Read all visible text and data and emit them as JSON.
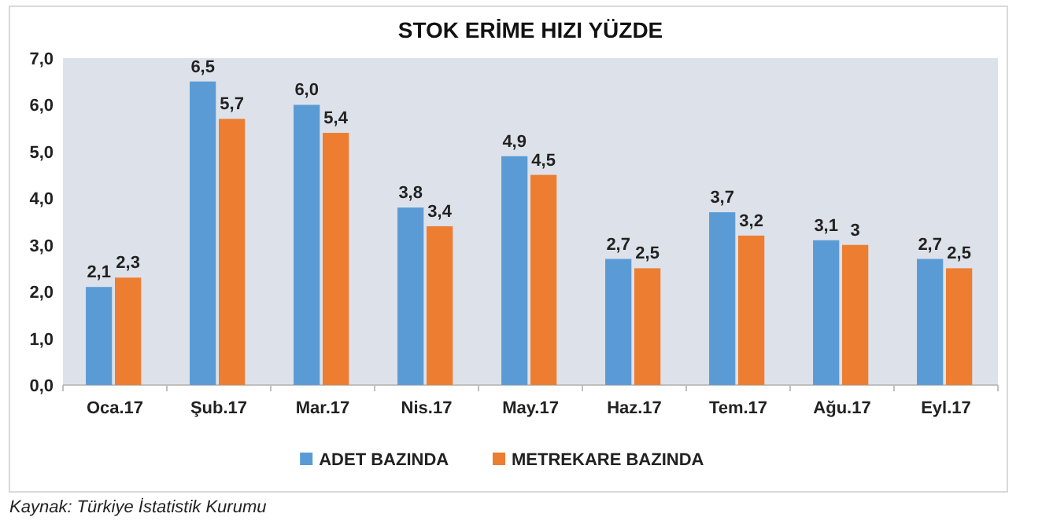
{
  "chart_data": {
    "type": "bar",
    "title": "STOK ERİME HIZI YÜZDE",
    "categories": [
      "Oca.17",
      "Şub.17",
      "Mar.17",
      "Nis.17",
      "May.17",
      "Haz.17",
      "Tem.17",
      "Ağu.17",
      "Eyl.17"
    ],
    "series": [
      {
        "name": "ADET BAZINDA",
        "color": "#5b9bd5",
        "values": [
          2.1,
          6.5,
          6.0,
          3.8,
          4.9,
          2.7,
          3.7,
          3.1,
          2.7
        ],
        "value_labels": [
          "2,1",
          "6,5",
          "6,0",
          "3,8",
          "4,9",
          "2,7",
          "3,7",
          "3,1",
          "2,7"
        ]
      },
      {
        "name": "METREKARE BAZINDA",
        "color": "#ed7d31",
        "values": [
          2.3,
          5.7,
          5.4,
          3.4,
          4.5,
          2.5,
          3.2,
          3.0,
          2.5
        ],
        "value_labels": [
          "2,3",
          "5,7",
          "5,4",
          "3,4",
          "4,5",
          "2,5",
          "3,2",
          "3",
          "2,5"
        ]
      }
    ],
    "ylim": [
      0,
      7
    ],
    "yticks": [
      {
        "value": 0,
        "label": "0,0"
      },
      {
        "value": 1,
        "label": "1,0"
      },
      {
        "value": 2,
        "label": "2,0"
      },
      {
        "value": 3,
        "label": "3,0"
      },
      {
        "value": 4,
        "label": "4,0"
      },
      {
        "value": 5,
        "label": "5,0"
      },
      {
        "value": 6,
        "label": "6,0"
      },
      {
        "value": 7,
        "label": "7,0"
      }
    ],
    "grid": false,
    "legend": "bottom",
    "annotations": [
      "Kaynak: Türkiye İstatistik Kurumu"
    ]
  }
}
